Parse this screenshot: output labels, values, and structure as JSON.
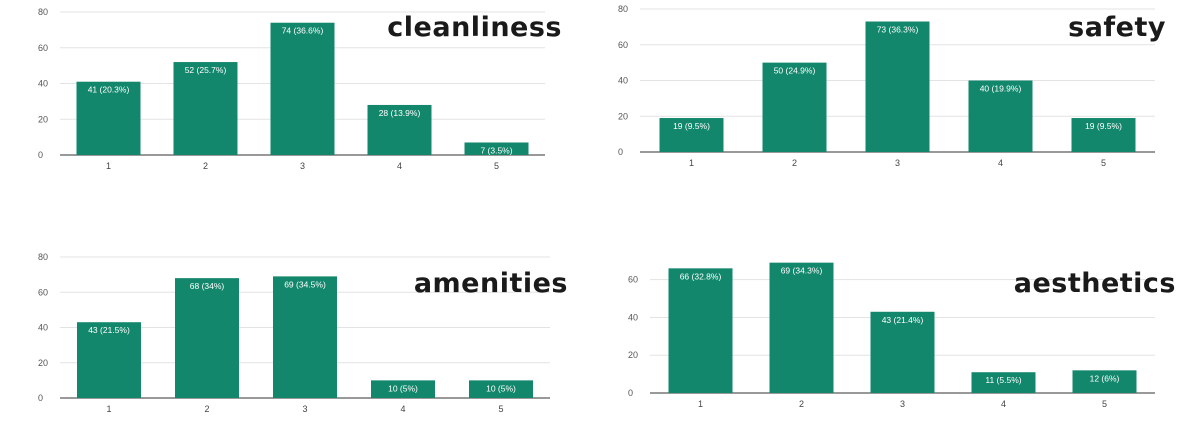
{
  "chart_data": [
    {
      "type": "bar",
      "title": "cleanliness",
      "categories": [
        "1",
        "2",
        "3",
        "4",
        "5"
      ],
      "values": [
        41,
        52,
        74,
        28,
        7
      ],
      "labels": [
        "41 (20.3%)",
        "52 (25.7%)",
        "74 (36.6%)",
        "28 (13.9%)",
        "7 (3.5%)"
      ],
      "yticks": [
        "0",
        "20",
        "40",
        "60",
        "80"
      ],
      "ylim": [
        0,
        80
      ],
      "grid": true,
      "color": "#13876c"
    },
    {
      "type": "bar",
      "title": "safety",
      "categories": [
        "1",
        "2",
        "3",
        "4",
        "5"
      ],
      "values": [
        19,
        50,
        73,
        40,
        19
      ],
      "labels": [
        "19 (9.5%)",
        "50 (24.9%)",
        "73 (36.3%)",
        "40 (19.9%)",
        "19 (9.5%)"
      ],
      "yticks": [
        "0",
        "20",
        "40",
        "60",
        "80"
      ],
      "ylim": [
        0,
        80
      ],
      "grid": true,
      "color": "#13876c"
    },
    {
      "type": "bar",
      "title": "amenities",
      "categories": [
        "1",
        "2",
        "3",
        "4",
        "5"
      ],
      "values": [
        43,
        68,
        69,
        10,
        10
      ],
      "labels": [
        "43 (21.5%)",
        "68 (34%)",
        "69 (34.5%)",
        "10 (5%)",
        "10 (5%)"
      ],
      "yticks": [
        "0",
        "20",
        "40",
        "60",
        "80"
      ],
      "ylim": [
        0,
        80
      ],
      "grid": true,
      "color": "#13876c"
    },
    {
      "type": "bar",
      "title": "aesthetics",
      "categories": [
        "1",
        "2",
        "3",
        "4",
        "5"
      ],
      "values": [
        66,
        69,
        43,
        11,
        12
      ],
      "labels": [
        "66 (32.8%)",
        "69 (34.3%)",
        "43 (21.4%)",
        "11 (5.5%)",
        "12 (6%)"
      ],
      "yticks": [
        "0",
        "20",
        "40",
        "60"
      ],
      "ylim": [
        0,
        72
      ],
      "grid": true,
      "color": "#13876c"
    }
  ]
}
